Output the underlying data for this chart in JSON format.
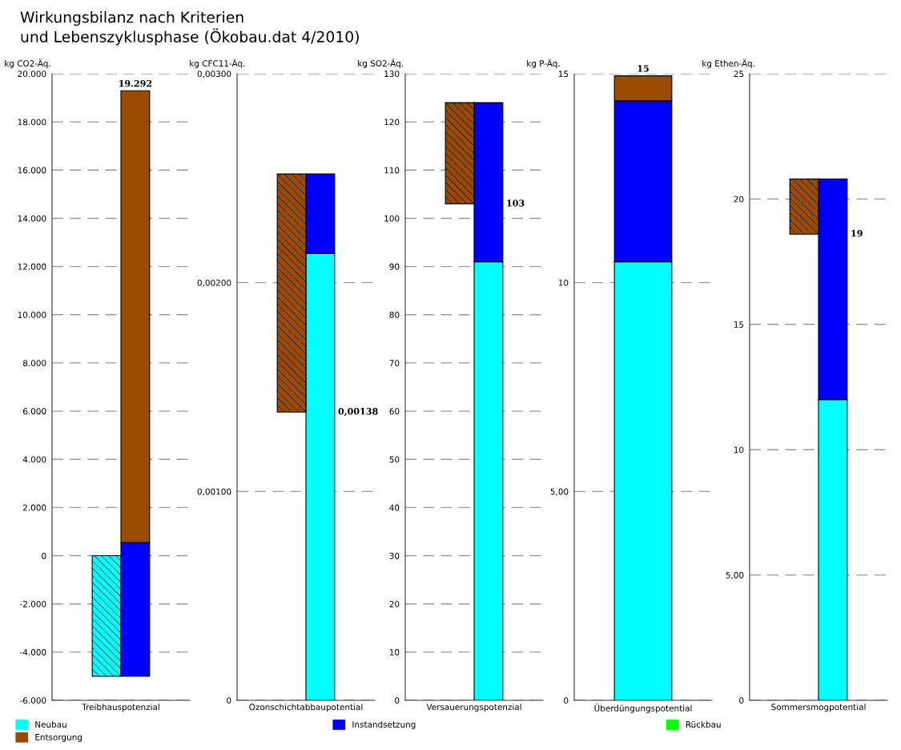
{
  "chart_data": [
    {
      "type": "bar",
      "title": "Wirkungsbilanz nach Kriterien\nund Lebenszyklusphase (Ökobau.dat 4/2010)",
      "ylabel": "kg CO2-Äq.",
      "categories": [
        "Treibhauspotenzial"
      ],
      "legend": "bottom",
      "grid": "y",
      "ylim": [
        -6000,
        20000
      ],
      "yticks": [
        {
          "value": -6000,
          "label": "-6.000"
        },
        {
          "value": -4000,
          "label": "-4.000"
        },
        {
          "value": -2000,
          "label": "-2.000"
        },
        0,
        {
          "value": 2000,
          "label": "2.000"
        },
        {
          "value": 4000,
          "label": "4.000"
        },
        {
          "value": 6000,
          "label": "6.000"
        },
        {
          "value": 8000,
          "label": "8.000"
        },
        {
          "value": 10000,
          "label": "10.000"
        },
        {
          "value": 12000,
          "label": "12.000"
        },
        {
          "value": 14000,
          "label": "14.000"
        },
        {
          "value": 16000,
          "label": "16.000"
        },
        {
          "value": 18000,
          "label": "18.000"
        },
        {
          "value": 20000,
          "label": "20.000"
        }
      ],
      "series": [
        {
          "name": "Neubau",
          "color": "#00ffff",
          "values": [
            -5000
          ],
          "base": [
            0
          ]
        },
        {
          "name": "Instandsetzung",
          "color": "#0000ff",
          "values": [
            5550
          ],
          "base": [
            -5000
          ]
        },
        {
          "name": "Entsorgung",
          "color": "#994c00",
          "values": [
            18742
          ],
          "base": [
            550
          ]
        },
        {
          "name": "Rückbau",
          "color": "#00ff00",
          "values": [
            null
          ],
          "base": [
            null
          ]
        }
      ],
      "totals": [
        "19.292"
      ]
    },
    {
      "type": "bar",
      "ylabel": "kg CFC11-Äq.",
      "categories": [
        "Ozonschichtabbaupotential"
      ],
      "grid": "y",
      "ylim": [
        0,
        0.003
      ],
      "yticks": [
        0,
        {
          "value": 0.001,
          "label": "0,00100"
        },
        {
          "value": 0.002,
          "label": "0,00200"
        },
        {
          "value": 0.003,
          "label": "0,00300"
        }
      ],
      "series": [
        {
          "color": "#00ffff",
          "values": [
            0.00214
          ],
          "base": [
            0
          ]
        },
        {
          "color": "#0000ff",
          "values": [
            0.00038
          ],
          "base": [
            0.00214
          ]
        },
        {
          "color": "#994c00",
          "values": [
            -0.00114
          ],
          "base": [
            0.00252
          ]
        }
      ],
      "totals": [
        "0,00138"
      ]
    },
    {
      "type": "bar",
      "ylabel": "kg SO2-Äq.",
      "categories": [
        "Versauerungspotenzial"
      ],
      "grid": "y",
      "ylim": [
        0,
        130
      ],
      "yticks": [
        0,
        10,
        20,
        30,
        40,
        50,
        60,
        70,
        80,
        90,
        100,
        110,
        120,
        130
      ],
      "series": [
        {
          "color": "#00ffff",
          "values": [
            91
          ],
          "base": [
            0
          ]
        },
        {
          "color": "#0000ff",
          "values": [
            33
          ],
          "base": [
            91
          ]
        },
        {
          "color": "#994c00",
          "values": [
            -21
          ],
          "base": [
            124
          ]
        }
      ],
      "totals": [
        "103"
      ]
    },
    {
      "type": "bar",
      "stacked": true,
      "ylabel": "kg P-Äq.",
      "categories": [
        "Überdüngungspotential"
      ],
      "grid": "y",
      "ylim": [
        0,
        15
      ],
      "yticks": [
        0,
        {
          "value": 5,
          "label": "5,00"
        },
        10,
        15
      ],
      "series": [
        {
          "color": "#00ffff",
          "values": [
            10.5
          ]
        },
        {
          "color": "#0000ff",
          "values": [
            3.85
          ]
        },
        {
          "color": "#994c00",
          "values": [
            0.6
          ]
        }
      ],
      "totals": [
        "15"
      ]
    },
    {
      "type": "bar",
      "ylabel": "kg Ethen-Äq.",
      "categories": [
        "Sommersmogpotential"
      ],
      "grid": "y",
      "ylim": [
        0,
        25
      ],
      "yticks": [
        0,
        {
          "value": 5,
          "label": "5,00"
        },
        10,
        15,
        20,
        25
      ],
      "series": [
        {
          "color": "#00ffff",
          "values": [
            12
          ],
          "base": [
            0
          ]
        },
        {
          "color": "#0000ff",
          "values": [
            8.8
          ],
          "base": [
            12
          ]
        },
        {
          "color": "#994c00",
          "values": [
            -2.2
          ],
          "base": [
            20.8
          ]
        }
      ],
      "totals": [
        "19"
      ]
    }
  ]
}
